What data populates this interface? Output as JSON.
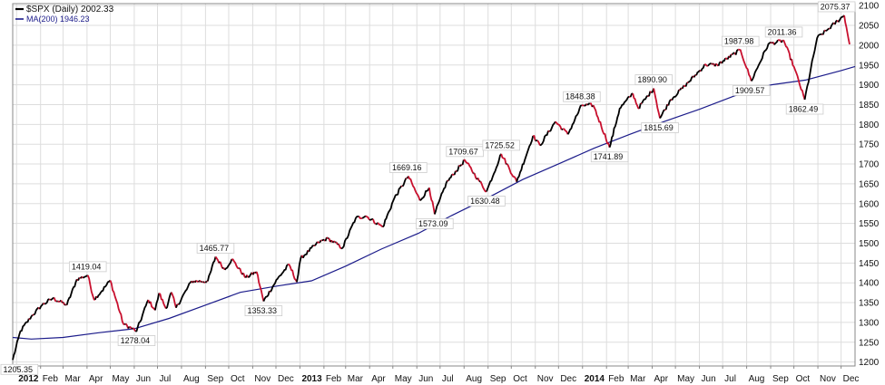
{
  "chart_data": {
    "type": "line",
    "title": "$SPX (Daily) 2002.33",
    "legend": [
      {
        "label": "$SPX (Daily) 2002.33",
        "color": "#000000"
      },
      {
        "label": "MA(200) 1946.23",
        "color": "#1b1b8a"
      }
    ],
    "legend_position": "top-left",
    "x_tick_labels": [
      {
        "label": "2012",
        "date": "2012-01-01",
        "bold": true
      },
      {
        "label": "Feb",
        "date": "2012-02-01"
      },
      {
        "label": "Mar",
        "date": "2012-03-01"
      },
      {
        "label": "Apr",
        "date": "2012-04-01"
      },
      {
        "label": "May",
        "date": "2012-05-01"
      },
      {
        "label": "Jun",
        "date": "2012-06-01"
      },
      {
        "label": "Jul",
        "date": "2012-07-01"
      },
      {
        "label": "Aug",
        "date": "2012-08-01"
      },
      {
        "label": "Sep",
        "date": "2012-09-01"
      },
      {
        "label": "Oct",
        "date": "2012-10-01"
      },
      {
        "label": "Nov",
        "date": "2012-11-01"
      },
      {
        "label": "Dec",
        "date": "2012-12-01"
      },
      {
        "label": "2013",
        "date": "2013-01-01",
        "bold": true
      },
      {
        "label": "Feb",
        "date": "2013-02-01"
      },
      {
        "label": "Mar",
        "date": "2013-03-01"
      },
      {
        "label": "Apr",
        "date": "2013-04-01"
      },
      {
        "label": "May",
        "date": "2013-05-01"
      },
      {
        "label": "Jun",
        "date": "2013-06-01"
      },
      {
        "label": "Jul",
        "date": "2013-07-01"
      },
      {
        "label": "Aug",
        "date": "2013-08-01"
      },
      {
        "label": "Sep",
        "date": "2013-09-01"
      },
      {
        "label": "Oct",
        "date": "2013-10-01"
      },
      {
        "label": "Nov",
        "date": "2013-11-01"
      },
      {
        "label": "Dec",
        "date": "2013-12-01"
      },
      {
        "label": "2014",
        "date": "2014-01-01",
        "bold": true
      },
      {
        "label": "Feb",
        "date": "2014-02-01"
      },
      {
        "label": "Mar",
        "date": "2014-03-01"
      },
      {
        "label": "Apr",
        "date": "2014-04-01"
      },
      {
        "label": "May",
        "date": "2014-05-01"
      },
      {
        "label": "Jun",
        "date": "2014-06-01"
      },
      {
        "label": "Jul",
        "date": "2014-07-01"
      },
      {
        "label": "Aug",
        "date": "2014-08-01"
      },
      {
        "label": "Sep",
        "date": "2014-09-01"
      },
      {
        "label": "Oct",
        "date": "2014-10-01"
      },
      {
        "label": "Nov",
        "date": "2014-11-01"
      },
      {
        "label": "Dec",
        "date": "2014-12-01"
      }
    ],
    "y_ticks": [
      1200,
      1250,
      1300,
      1350,
      1400,
      1450,
      1500,
      1550,
      1600,
      1650,
      1700,
      1750,
      1800,
      1850,
      1900,
      1950,
      2000,
      2050,
      2100
    ],
    "ylim": [
      1190,
      2105
    ],
    "xlim": [
      "2011-12-27",
      "2014-12-19"
    ],
    "grid": true,
    "series": [
      {
        "name": "$SPX (Daily)",
        "color": "#000000",
        "down_color": "#c8102e",
        "points": [
          [
            "2011-12-27",
            1205.35
          ],
          [
            "2012-01-06",
            1278
          ],
          [
            "2012-01-20",
            1315
          ],
          [
            "2012-02-03",
            1344
          ],
          [
            "2012-02-17",
            1361
          ],
          [
            "2012-03-06",
            1344
          ],
          [
            "2012-03-19",
            1409
          ],
          [
            "2012-04-02",
            1419.04
          ],
          [
            "2012-04-10",
            1358
          ],
          [
            "2012-04-20",
            1379
          ],
          [
            "2012-05-01",
            1406
          ],
          [
            "2012-05-18",
            1296
          ],
          [
            "2012-06-04",
            1278.04
          ],
          [
            "2012-06-19",
            1357
          ],
          [
            "2012-06-28",
            1331
          ],
          [
            "2012-07-03",
            1374
          ],
          [
            "2012-07-12",
            1335
          ],
          [
            "2012-07-19",
            1376
          ],
          [
            "2012-07-25",
            1337
          ],
          [
            "2012-08-14",
            1404
          ],
          [
            "2012-09-04",
            1404
          ],
          [
            "2012-09-14",
            1465.77
          ],
          [
            "2012-09-26",
            1433
          ],
          [
            "2012-10-05",
            1460
          ],
          [
            "2012-10-23",
            1413
          ],
          [
            "2012-11-06",
            1428
          ],
          [
            "2012-11-15",
            1353.33
          ],
          [
            "2012-12-03",
            1410
          ],
          [
            "2012-12-18",
            1446
          ],
          [
            "2012-12-28",
            1402
          ],
          [
            "2013-01-02",
            1462
          ],
          [
            "2013-01-25",
            1502
          ],
          [
            "2013-02-06",
            1512
          ],
          [
            "2013-02-25",
            1488
          ],
          [
            "2013-03-14",
            1563
          ],
          [
            "2013-03-27",
            1569
          ],
          [
            "2013-04-18",
            1541
          ],
          [
            "2013-05-03",
            1614
          ],
          [
            "2013-05-21",
            1669.16
          ],
          [
            "2013-06-05",
            1608
          ],
          [
            "2013-06-17",
            1640
          ],
          [
            "2013-06-24",
            1573.09
          ],
          [
            "2013-07-09",
            1652
          ],
          [
            "2013-08-02",
            1709.67
          ],
          [
            "2013-08-30",
            1630.48
          ],
          [
            "2013-09-18",
            1725.52
          ],
          [
            "2013-10-08",
            1655
          ],
          [
            "2013-10-29",
            1771
          ],
          [
            "2013-11-07",
            1747
          ],
          [
            "2013-11-27",
            1807
          ],
          [
            "2013-12-13",
            1775
          ],
          [
            "2013-12-31",
            1848.38
          ],
          [
            "2014-01-15",
            1848
          ],
          [
            "2014-02-05",
            1741.89
          ],
          [
            "2014-02-18",
            1840
          ],
          [
            "2014-03-07",
            1878
          ],
          [
            "2014-03-14",
            1841
          ],
          [
            "2014-04-03",
            1890.9
          ],
          [
            "2014-04-11",
            1815.69
          ],
          [
            "2014-04-25",
            1863
          ],
          [
            "2014-05-13",
            1897
          ],
          [
            "2014-06-09",
            1951
          ],
          [
            "2014-06-24",
            1950
          ],
          [
            "2014-07-24",
            1987.98
          ],
          [
            "2014-08-07",
            1909.57
          ],
          [
            "2014-08-29",
            2003
          ],
          [
            "2014-09-18",
            2011.36
          ],
          [
            "2014-10-01",
            1946
          ],
          [
            "2014-10-15",
            1862.49
          ],
          [
            "2014-10-31",
            2018
          ],
          [
            "2014-11-14",
            2040
          ],
          [
            "2014-12-05",
            2075.37
          ],
          [
            "2014-12-12",
            2002.33
          ]
        ]
      },
      {
        "name": "MA(200)",
        "color": "#1b1b8a",
        "points": [
          [
            "2011-12-27",
            1262
          ],
          [
            "2012-01-20",
            1258
          ],
          [
            "2012-03-01",
            1262
          ],
          [
            "2012-04-16",
            1274
          ],
          [
            "2012-06-01",
            1284
          ],
          [
            "2012-07-16",
            1310
          ],
          [
            "2012-09-03",
            1345
          ],
          [
            "2012-10-16",
            1376
          ],
          [
            "2012-12-03",
            1392
          ],
          [
            "2013-01-16",
            1405
          ],
          [
            "2013-03-01",
            1442
          ],
          [
            "2013-04-16",
            1485
          ],
          [
            "2013-06-03",
            1525
          ],
          [
            "2013-07-16",
            1570
          ],
          [
            "2013-09-03",
            1617
          ],
          [
            "2013-10-16",
            1661
          ],
          [
            "2013-12-02",
            1701
          ],
          [
            "2014-01-16",
            1740
          ],
          [
            "2014-03-03",
            1775
          ],
          [
            "2014-04-16",
            1807
          ],
          [
            "2014-06-02",
            1839
          ],
          [
            "2014-07-16",
            1872
          ],
          [
            "2014-09-02",
            1900
          ],
          [
            "2014-10-16",
            1912
          ],
          [
            "2014-12-01",
            1936
          ],
          [
            "2014-12-19",
            1946.23
          ]
        ]
      }
    ],
    "annotations": [
      {
        "label": "1205.35",
        "date": "2011-12-27",
        "value": 1205.35,
        "position": "below"
      },
      {
        "label": "1419.04",
        "date": "2012-04-02",
        "value": 1419.04,
        "position": "above"
      },
      {
        "label": "1278.04",
        "date": "2012-06-04",
        "value": 1278.04,
        "position": "below"
      },
      {
        "label": "1465.77",
        "date": "2012-09-14",
        "value": 1465.77,
        "position": "above"
      },
      {
        "label": "1353.33",
        "date": "2012-11-15",
        "value": 1353.33,
        "position": "below"
      },
      {
        "label": "1669.16",
        "date": "2013-05-21",
        "value": 1669.16,
        "position": "above"
      },
      {
        "label": "1573.09",
        "date": "2013-06-24",
        "value": 1573.09,
        "position": "below"
      },
      {
        "label": "1709.67",
        "date": "2013-08-02",
        "value": 1709.67,
        "position": "above"
      },
      {
        "label": "1725.52",
        "date": "2013-09-18",
        "value": 1725.52,
        "position": "above"
      },
      {
        "label": "1630.48",
        "date": "2013-08-30",
        "value": 1630.48,
        "position": "below"
      },
      {
        "label": "1848.38",
        "date": "2013-12-31",
        "value": 1848.38,
        "position": "above"
      },
      {
        "label": "1741.89",
        "date": "2014-02-05",
        "value": 1741.89,
        "position": "below"
      },
      {
        "label": "1890.90",
        "date": "2014-04-03",
        "value": 1890.9,
        "position": "above"
      },
      {
        "label": "1815.69",
        "date": "2014-04-11",
        "value": 1815.69,
        "position": "below"
      },
      {
        "label": "1987.98",
        "date": "2014-07-24",
        "value": 1987.98,
        "position": "above"
      },
      {
        "label": "1909.57",
        "date": "2014-08-07",
        "value": 1909.57,
        "position": "below"
      },
      {
        "label": "2011.36",
        "date": "2014-09-18",
        "value": 2011.36,
        "position": "above"
      },
      {
        "label": "1862.49",
        "date": "2014-10-15",
        "value": 1862.49,
        "position": "below"
      },
      {
        "label": "2075.37",
        "date": "2014-12-05",
        "value": 2075.37,
        "position": "above"
      }
    ]
  }
}
